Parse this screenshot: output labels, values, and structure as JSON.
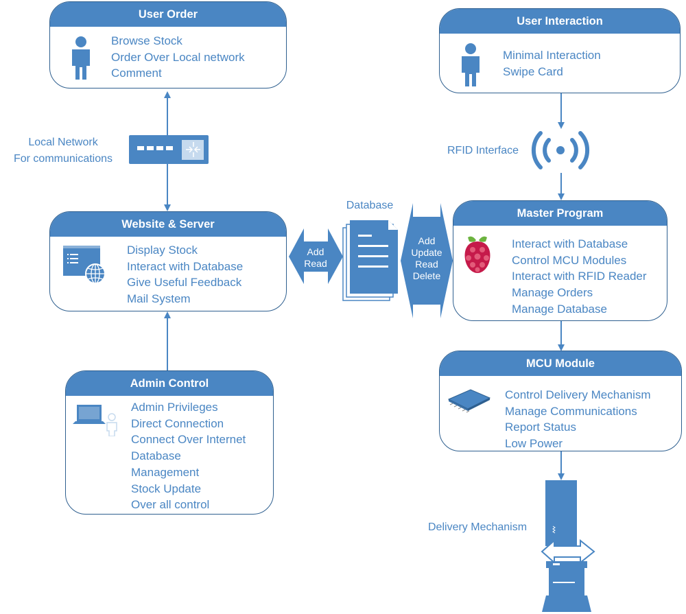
{
  "colors": {
    "primary": "#4a86c3",
    "border": "#2e5f8f",
    "text_on_primary": "#ffffff"
  },
  "boxes": {
    "user_order": {
      "title": "User Order",
      "icon": "person-icon",
      "lines": [
        "Browse Stock",
        "Order Over Local network",
        "Comment"
      ]
    },
    "user_interaction": {
      "title": "User Interaction",
      "icon": "person-icon",
      "lines": [
        "Minimal Interaction",
        "Swipe Card"
      ]
    },
    "website_server": {
      "title": "Website & Server",
      "icon": "web-browser-globe-icon",
      "lines": [
        "Display Stock",
        "Interact with Database",
        "Give Useful Feedback",
        "Mail System"
      ]
    },
    "master_program": {
      "title": "Master Program",
      "icon": "raspberry-pi-icon",
      "lines": [
        "Interact with Database",
        "Control MCU Modules",
        "Interact with RFID Reader",
        "Manage Orders",
        "Manage Database"
      ]
    },
    "admin_control": {
      "title": "Admin Control",
      "icon": "laptop-user-icon",
      "lines": [
        "Admin Privileges",
        "Direct Connection",
        "Connect Over Internet",
        "Database",
        "Management",
        "Stock Update",
        "Over all control"
      ]
    },
    "mcu_module": {
      "title": "MCU Module",
      "icon": "microchip-icon",
      "lines": [
        "Control Delivery Mechanism",
        "Manage Communications",
        "Report Status",
        "Low Power"
      ]
    }
  },
  "labels": {
    "local_network": [
      "Local Network",
      "For communications"
    ],
    "rfid_interface": "RFID Interface",
    "database": "Database",
    "delivery_mechanism": "Delivery Mechanism"
  },
  "arrows": {
    "left_double": [
      "Add",
      "Read"
    ],
    "right_double": [
      "Add",
      "Update",
      "Read",
      "Delete"
    ]
  }
}
